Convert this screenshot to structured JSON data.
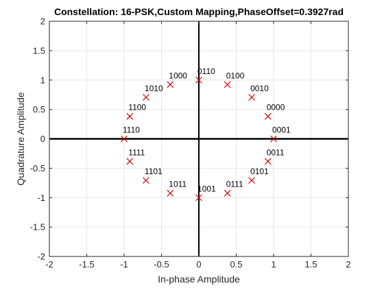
{
  "chart_data": {
    "type": "scatter",
    "title": "Constellation: 16-PSK,Custom Mapping,PhaseOffset=0.3927rad",
    "xlabel": "In-phase Amplitude",
    "ylabel": "Quadrature Amplitude",
    "xlim": [
      -2,
      2
    ],
    "ylim": [
      -2,
      2
    ],
    "xticks": [
      "-2",
      "-1.5",
      "-1",
      "-0.5",
      "0",
      "0.5",
      "1",
      "1.5",
      "2"
    ],
    "yticks": [
      "-2",
      "-1.5",
      "-1",
      "-0.5",
      "0",
      "0.5",
      "1",
      "1.5",
      "2"
    ],
    "grid": true,
    "marker": "x",
    "marker_color": "#cc0000",
    "points": [
      {
        "x": 1.0,
        "y": 0.0,
        "label": "0001"
      },
      {
        "x": 0.9239,
        "y": 0.3827,
        "label": "0000"
      },
      {
        "x": 0.7071,
        "y": 0.7071,
        "label": "0010"
      },
      {
        "x": 0.3827,
        "y": 0.9239,
        "label": "0100"
      },
      {
        "x": 0.0,
        "y": 1.0,
        "label": "0110"
      },
      {
        "x": -0.3827,
        "y": 0.9239,
        "label": "1000"
      },
      {
        "x": -0.7071,
        "y": 0.7071,
        "label": "1010"
      },
      {
        "x": -0.9239,
        "y": 0.3827,
        "label": "1100"
      },
      {
        "x": -1.0,
        "y": 0.0,
        "label": "1110"
      },
      {
        "x": -0.9239,
        "y": -0.3827,
        "label": "1111"
      },
      {
        "x": -0.7071,
        "y": -0.7071,
        "label": "1101"
      },
      {
        "x": -0.3827,
        "y": -0.9239,
        "label": "1011"
      },
      {
        "x": 0.0,
        "y": -1.0,
        "label": "1001"
      },
      {
        "x": 0.3827,
        "y": -0.9239,
        "label": "0111"
      },
      {
        "x": 0.7071,
        "y": -0.7071,
        "label": "0101"
      },
      {
        "x": 0.9239,
        "y": -0.3827,
        "label": "0011"
      }
    ]
  }
}
